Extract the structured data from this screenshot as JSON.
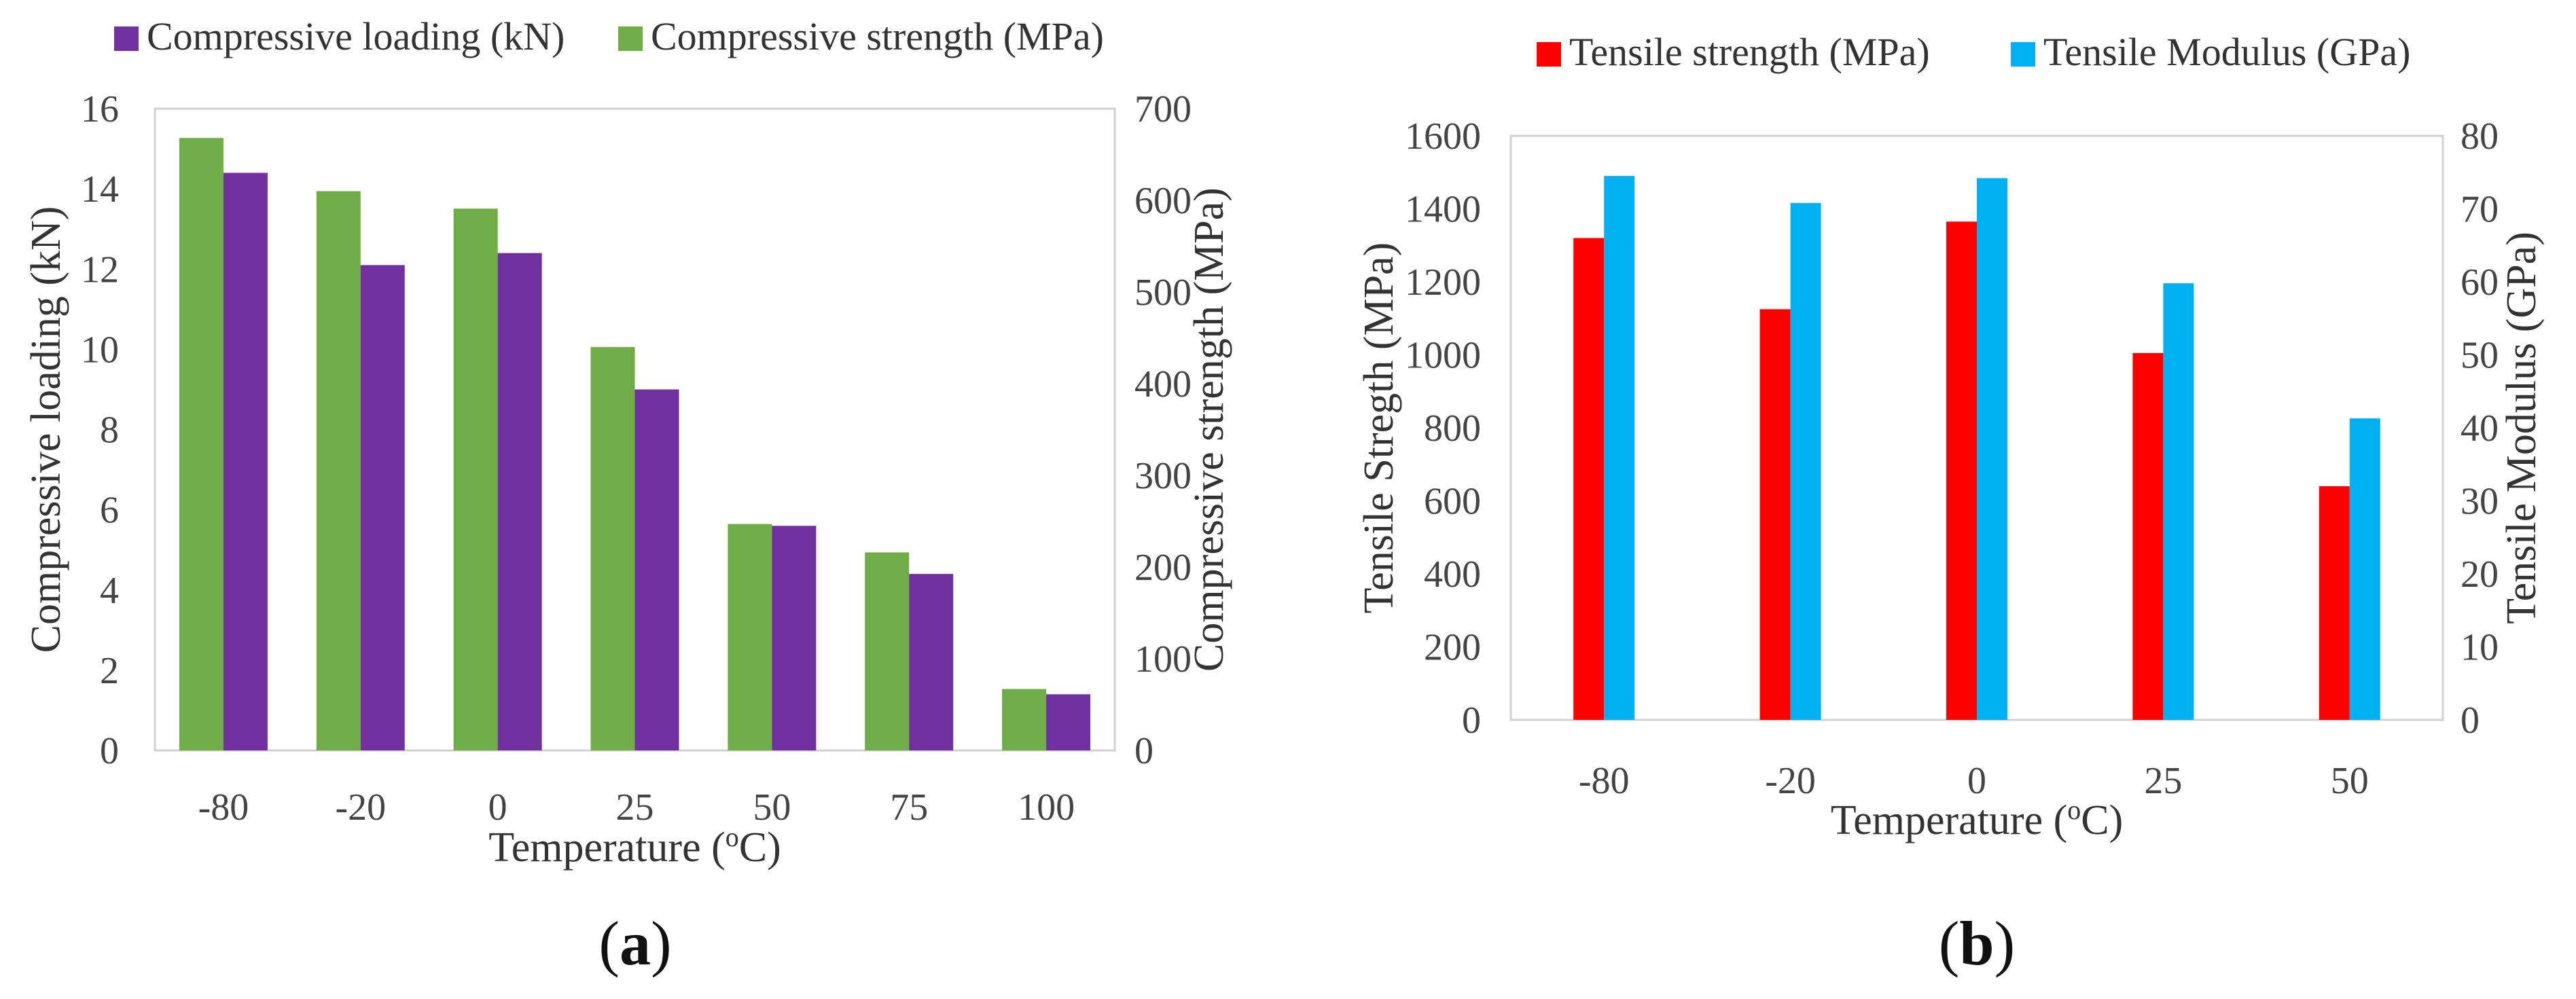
{
  "chart_data": [
    {
      "type": "bar",
      "panel_label_open": "(",
      "panel_label_letter": "a",
      "panel_label_close": ")",
      "categories": [
        "-80",
        "-20",
        "0",
        "25",
        "50",
        "75",
        "100"
      ],
      "xlabel_prefix": "Temperature (",
      "xlabel_sup": "o",
      "xlabel_suffix": "C)",
      "ylabel_left": "Compressive loading (kN)",
      "ylabel_right": "Compressive strength (MPa)",
      "ylim_left": [
        0,
        16
      ],
      "ylim_right": [
        0,
        700
      ],
      "yticks_left": [
        "0",
        "2",
        "4",
        "6",
        "8",
        "10",
        "12",
        "14",
        "16"
      ],
      "yticks_right": [
        "0",
        "100",
        "200",
        "300",
        "400",
        "500",
        "600",
        "700"
      ],
      "grid": false,
      "legend_position": "top",
      "series": [
        {
          "name": "Compressive loading (kN)",
          "axis": "left",
          "color": "#7030A0",
          "draw_order": 2,
          "values": [
            14.4,
            12.1,
            12.4,
            9.0,
            5.6,
            4.4,
            1.4
          ]
        },
        {
          "name": "Compressive strength (MPa)",
          "axis": "right",
          "color": "#70AD47",
          "draw_order": 1,
          "values": [
            668,
            610,
            591,
            440,
            247,
            216,
            67
          ]
        }
      ]
    },
    {
      "type": "bar",
      "panel_label_open": "(",
      "panel_label_letter": "b",
      "panel_label_close": ")",
      "categories": [
        "-80",
        "-20",
        "0",
        "25",
        "50"
      ],
      "xlabel_prefix": "Temperature (",
      "xlabel_sup": "o",
      "xlabel_suffix": "C)",
      "ylabel_left": "Tensile Stregth (MPa)",
      "ylabel_right": "Tensile Modulus (GPa)",
      "ylim_left": [
        0,
        1600
      ],
      "ylim_right": [
        0,
        80
      ],
      "yticks_left": [
        "0",
        "200",
        "400",
        "600",
        "800",
        "1000",
        "1200",
        "1400",
        "1600"
      ],
      "yticks_right": [
        "0",
        "10",
        "20",
        "30",
        "40",
        "50",
        "60",
        "70",
        "80"
      ],
      "grid": false,
      "legend_position": "top",
      "series": [
        {
          "name": "Tensile strength (MPa)",
          "axis": "left",
          "color": "#FF0000",
          "draw_order": 1,
          "values": [
            1320,
            1125,
            1365,
            1005,
            640
          ]
        },
        {
          "name": "Tensile Modulus (GPa)",
          "axis": "right",
          "color": "#00B0F0",
          "draw_order": 2,
          "values": [
            74.5,
            70.8,
            74.2,
            59.8,
            41.3
          ]
        }
      ]
    }
  ]
}
